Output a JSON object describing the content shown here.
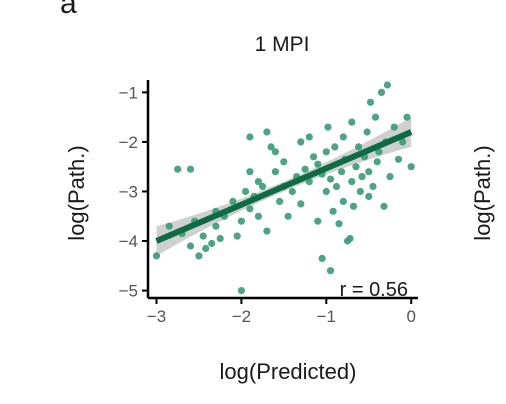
{
  "panel_label": "a",
  "right_panel_ylabel": "log(Path.)",
  "chart_data": {
    "type": "scatter",
    "title": "1 MPI",
    "xlabel": "log(Predicted)",
    "ylabel": "log(Path.)",
    "xlim": [
      -3.1,
      0.08
    ],
    "ylim": [
      -5.15,
      -0.75
    ],
    "xticks": [
      -3,
      -2,
      -1,
      0
    ],
    "yticks": [
      -5,
      -4,
      -3,
      -2,
      -1
    ],
    "xtick_labels": [
      "−3",
      "−2",
      "−1",
      "0"
    ],
    "ytick_labels": [
      "−5",
      "−4",
      "−3",
      "−2",
      "−1"
    ],
    "grid": false,
    "annotation": "r = 0.56",
    "point_color": "#3a9a75",
    "line_color": "#0d6b45",
    "band_color": "#c8c8c8",
    "fit": {
      "x0": -3.0,
      "y0": -4.0,
      "x1": 0.0,
      "y1": -1.8,
      "band_halfwidth_ends": 0.3,
      "band_halfwidth_mid": 0.1
    },
    "points": [
      [
        -3.0,
        -4.3
      ],
      [
        -2.85,
        -3.7
      ],
      [
        -2.75,
        -2.55
      ],
      [
        -2.7,
        -3.85
      ],
      [
        -2.6,
        -4.1
      ],
      [
        -2.55,
        -3.6
      ],
      [
        -2.5,
        -4.3
      ],
      [
        -2.45,
        -3.9
      ],
      [
        -2.42,
        -4.15
      ],
      [
        -2.35,
        -4.05
      ],
      [
        -2.3,
        -3.4
      ],
      [
        -2.3,
        -3.7
      ],
      [
        -2.25,
        -3.95
      ],
      [
        -2.2,
        -3.5
      ],
      [
        -2.1,
        -3.2
      ],
      [
        -2.05,
        -3.9
      ],
      [
        -2.0,
        -3.6
      ],
      [
        -2.0,
        -5.0
      ],
      [
        -1.95,
        -3.0
      ],
      [
        -1.9,
        -2.6
      ],
      [
        -1.9,
        -3.35
      ],
      [
        -1.85,
        -3.1
      ],
      [
        -1.8,
        -3.5
      ],
      [
        -1.8,
        -2.8
      ],
      [
        -1.75,
        -2.9
      ],
      [
        -1.7,
        -1.8
      ],
      [
        -1.7,
        -3.8
      ],
      [
        -1.65,
        -2.1
      ],
      [
        -1.6,
        -2.6
      ],
      [
        -1.55,
        -3.2
      ],
      [
        -1.5,
        -2.4
      ],
      [
        -1.5,
        -2.9
      ],
      [
        -1.45,
        -3.5
      ],
      [
        -1.4,
        -3.0
      ],
      [
        -1.35,
        -2.7
      ],
      [
        -1.3,
        -2.0
      ],
      [
        -1.3,
        -3.25
      ],
      [
        -1.25,
        -2.55
      ],
      [
        -1.2,
        -1.9
      ],
      [
        -1.2,
        -2.8
      ],
      [
        -1.15,
        -2.3
      ],
      [
        -1.1,
        -3.6
      ],
      [
        -1.1,
        -2.45
      ],
      [
        -1.05,
        -2.65
      ],
      [
        -1.0,
        -2.2
      ],
      [
        -1.0,
        -3.0
      ],
      [
        -0.98,
        -1.7
      ],
      [
        -0.95,
        -2.75
      ],
      [
        -0.92,
        -3.4
      ],
      [
        -0.9,
        -2.1
      ],
      [
        -0.88,
        -2.9
      ],
      [
        -0.85,
        -3.65
      ],
      [
        -0.82,
        -2.6
      ],
      [
        -0.8,
        -3.2
      ],
      [
        -0.8,
        -1.9
      ],
      [
        -0.78,
        -2.35
      ],
      [
        -0.75,
        -4.0
      ],
      [
        -0.72,
        -3.95
      ],
      [
        -0.7,
        -2.8
      ],
      [
        -0.7,
        -1.6
      ],
      [
        -0.68,
        -3.3
      ],
      [
        -0.65,
        -2.5
      ],
      [
        -0.62,
        -2.1
      ],
      [
        -0.6,
        -3.0
      ],
      [
        -0.58,
        -2.7
      ],
      [
        -0.55,
        -2.3
      ],
      [
        -0.52,
        -1.8
      ],
      [
        -0.5,
        -2.6
      ],
      [
        -0.5,
        -3.1
      ],
      [
        -0.48,
        -1.2
      ],
      [
        -0.45,
        -2.9
      ],
      [
        -0.42,
        -1.5
      ],
      [
        -0.4,
        -2.4
      ],
      [
        -0.38,
        -2.2
      ],
      [
        -0.35,
        -1.0
      ],
      [
        -0.32,
        -3.3
      ],
      [
        -0.3,
        -2.0
      ],
      [
        -0.28,
        -0.85
      ],
      [
        -0.25,
        -2.7
      ],
      [
        -0.2,
        -1.7
      ],
      [
        -0.15,
        -2.35
      ],
      [
        -0.1,
        -2.0
      ],
      [
        -0.05,
        -1.5
      ],
      [
        0.0,
        -2.5
      ],
      [
        -0.95,
        -4.6
      ],
      [
        -1.05,
        -4.35
      ],
      [
        -1.6,
        -2.2
      ],
      [
        -2.6,
        -2.55
      ],
      [
        -1.9,
        -1.9
      ]
    ]
  }
}
